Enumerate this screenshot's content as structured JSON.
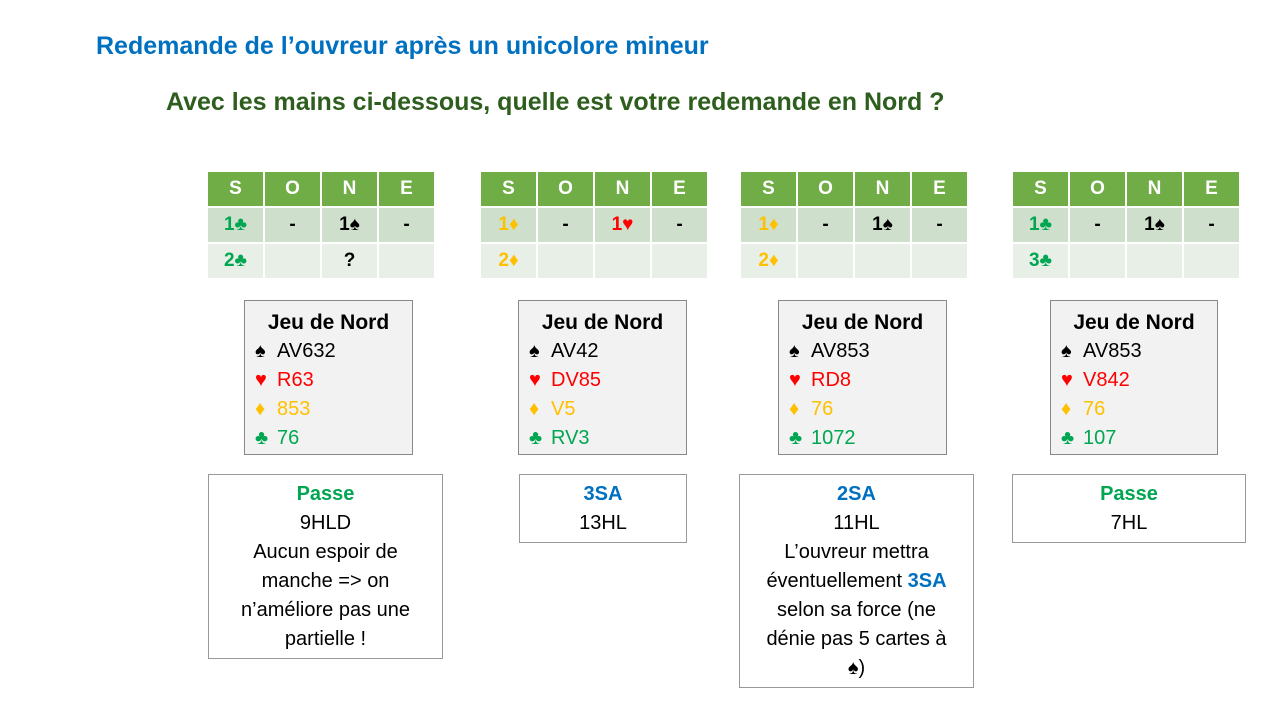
{
  "title": "Redemande de l’ouvreur après un unicolore mineur",
  "subtitle": "Avec les mains ci-dessous, quelle est votre redemande en Nord ?",
  "colors": {
    "title": "#0070C0",
    "subtitle": "#2E5E1E",
    "header_green": "#70AD47",
    "clubs": "#00A651",
    "diamonds": "#FFC000",
    "hearts": "#FF0000",
    "spades": "#000000",
    "bid_blue": "#0070C0"
  },
  "symbols": {
    "spade": "♠",
    "heart": "♥",
    "diamond": "♦",
    "club": "♣"
  },
  "headers": [
    "S",
    "O",
    "N",
    "E"
  ],
  "hand_heading": "Jeu de Nord",
  "deals": [
    {
      "row1": {
        "s_level": "1",
        "s_suit": "club",
        "o": "-",
        "n_level": "1",
        "n_suit": "spade",
        "e": "-"
      },
      "row2": {
        "s_level": "2",
        "s_suit": "club",
        "n": "?"
      },
      "hand": {
        "spades": "AV632",
        "hearts": "R63",
        "diamonds": "853",
        "clubs": "76"
      },
      "answer": {
        "bid": "Passe",
        "points": "9HLD",
        "expl_lines": [
          "Aucun espoir de",
          "manche => on",
          "n’améliore pas une",
          "partielle !"
        ]
      }
    },
    {
      "row1": {
        "s_level": "1",
        "s_suit": "diamond",
        "o": "-",
        "n_level": "1",
        "n_suit": "heart",
        "e": "-"
      },
      "row2": {
        "s_level": "2",
        "s_suit": "diamond"
      },
      "hand": {
        "spades": "AV42",
        "hearts": "DV85",
        "diamonds": "V5",
        "clubs": "RV3"
      },
      "answer": {
        "bid": "3SA",
        "points": "13HL"
      }
    },
    {
      "row1": {
        "s_level": "1",
        "s_suit": "diamond",
        "o": "-",
        "n_level": "1",
        "n_suit": "spade",
        "e": "-"
      },
      "row2": {
        "s_level": "2",
        "s_suit": "diamond"
      },
      "hand": {
        "spades": "AV853",
        "hearts": "RD8",
        "diamonds": "76",
        "clubs": "1072"
      },
      "answer": {
        "bid": "2SA",
        "points": "11HL",
        "expl_l1": "L’ouvreur mettra",
        "expl_l2a": "éventuellement ",
        "expl_l2b": "3SA",
        "expl_l3": "selon sa force (ne",
        "expl_l4": "dénie pas 5 cartes à",
        "expl_l5": ")"
      }
    },
    {
      "row1": {
        "s_level": "1",
        "s_suit": "club",
        "o": "-",
        "n_level": "1",
        "n_suit": "spade",
        "e": "-"
      },
      "row2": {
        "s_level": "3",
        "s_suit": "club"
      },
      "hand": {
        "spades": "AV853",
        "hearts": "V842",
        "diamonds": "76",
        "clubs": "107"
      },
      "answer": {
        "bid": "Passe",
        "points": "7HL"
      }
    }
  ]
}
